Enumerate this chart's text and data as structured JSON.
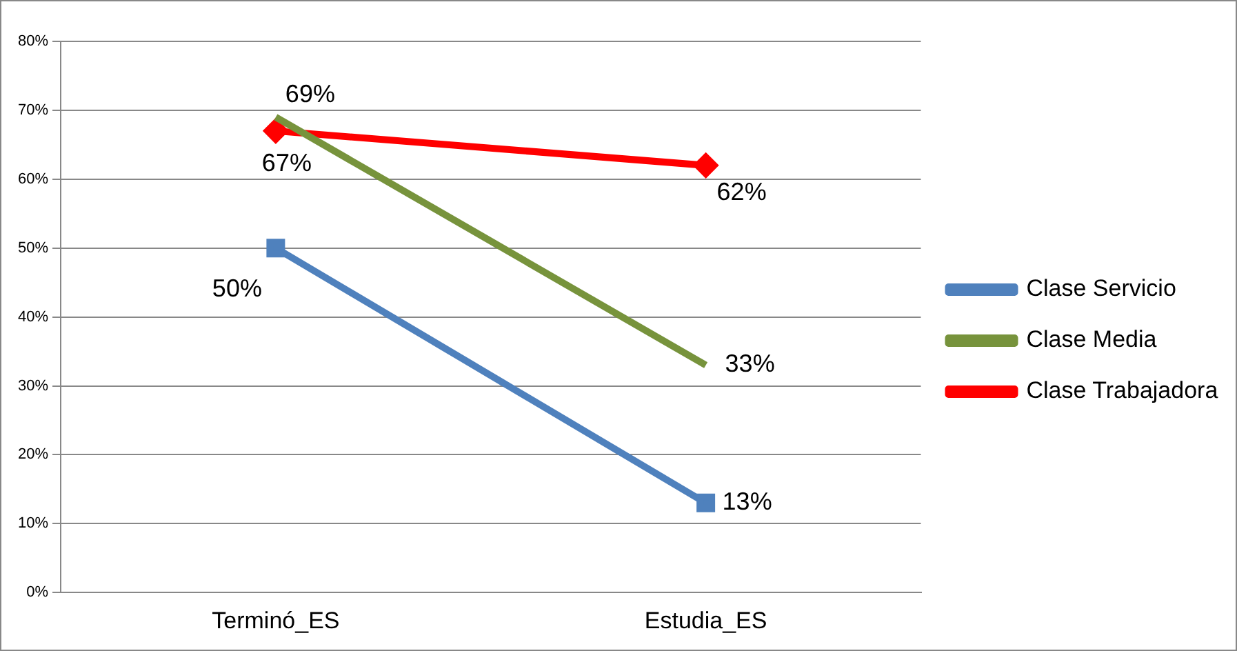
{
  "chart_data": {
    "type": "line",
    "categories": [
      "Terminó_ES",
      "Estudia_ES"
    ],
    "series": [
      {
        "name": "Clase Servicio",
        "color": "#4f81bd",
        "values": [
          50,
          13
        ],
        "marker": "square",
        "value_labels": [
          "50%",
          "13%"
        ]
      },
      {
        "name": "Clase Media",
        "color": "#77933c",
        "values": [
          69,
          33
        ],
        "marker": "none",
        "value_labels": [
          "69%",
          "33%"
        ]
      },
      {
        "name": "Clase Trabajadora",
        "color": "#ff0000",
        "values": [
          67,
          62
        ],
        "marker": "diamond",
        "value_labels": [
          "67%",
          "62%"
        ]
      }
    ],
    "ylim": [
      0,
      80
    ],
    "yticks": [
      {
        "value": 0,
        "label": "0%"
      },
      {
        "value": 10,
        "label": "10%"
      },
      {
        "value": 20,
        "label": "20%"
      },
      {
        "value": 30,
        "label": "30%"
      },
      {
        "value": 40,
        "label": "40%"
      },
      {
        "value": 50,
        "label": "50%"
      },
      {
        "value": 60,
        "label": "60%"
      },
      {
        "value": 70,
        "label": "70%"
      },
      {
        "value": 80,
        "label": "80%"
      }
    ],
    "grid": "y",
    "legend": "right",
    "line_style": "solid"
  }
}
